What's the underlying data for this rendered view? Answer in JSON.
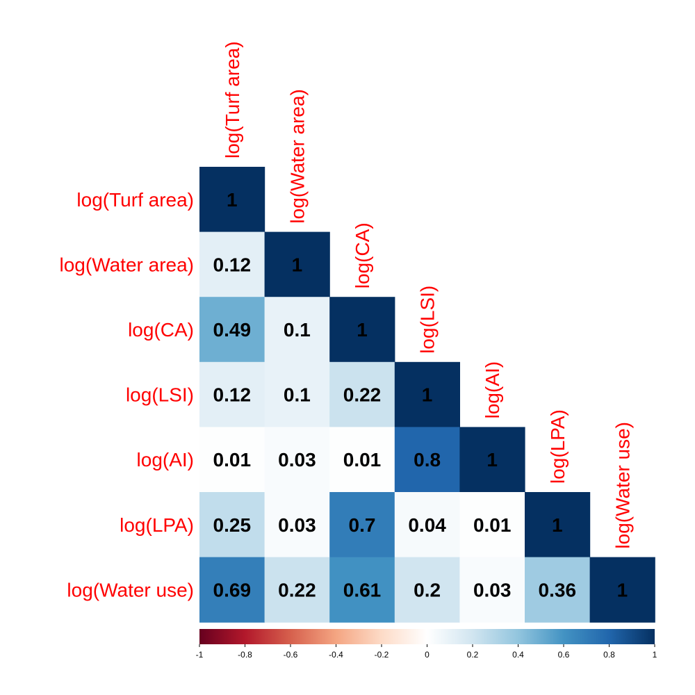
{
  "chart_data": {
    "type": "heatmap",
    "layout": "lower-triangle",
    "variables": [
      "log(Turf area)",
      "log(Water area)",
      "log(CA)",
      "log(LSI)",
      "log(AI)",
      "log(LPA)",
      "log(Water use)"
    ],
    "matrix": [
      [
        1
      ],
      [
        0.12,
        1
      ],
      [
        0.49,
        0.1,
        1
      ],
      [
        0.12,
        0.1,
        0.22,
        1
      ],
      [
        0.01,
        0.03,
        0.01,
        0.8,
        1
      ],
      [
        0.25,
        0.03,
        0.7,
        0.04,
        0.01,
        1
      ],
      [
        0.69,
        0.22,
        0.61,
        0.2,
        0.03,
        0.36,
        1
      ]
    ],
    "value_labels": [
      [
        "1"
      ],
      [
        "0.12",
        "1"
      ],
      [
        "0.49",
        "0.1",
        "1"
      ],
      [
        "0.12",
        "0.1",
        "0.22",
        "1"
      ],
      [
        "0.01",
        "0.03",
        "0.01",
        "0.8",
        "1"
      ],
      [
        "0.25",
        "0.03",
        "0.7",
        "0.04",
        "0.01",
        "1"
      ],
      [
        "0.69",
        "0.22",
        "0.61",
        "0.2",
        "0.03",
        "0.36",
        "1"
      ]
    ],
    "colorbar": {
      "range": [
        -1,
        1
      ],
      "ticks": [
        -1,
        -0.8,
        -0.6,
        -0.4,
        -0.2,
        0,
        0.2,
        0.4,
        0.6,
        0.8,
        1
      ],
      "tick_labels": [
        "-1",
        "-0.8",
        "-0.6",
        "-0.4",
        "-0.2",
        "0",
        "0.2",
        "0.4",
        "0.6",
        "0.8",
        "1"
      ],
      "placement": "bottom",
      "colors": [
        "#67001f",
        "#b2182b",
        "#d6604d",
        "#f4a582",
        "#fddbc7",
        "#ffffff",
        "#d1e5f0",
        "#92c5de",
        "#4393c3",
        "#2166ac",
        "#053061"
      ]
    },
    "label_color": "#ff0000",
    "value_color": "#000000"
  }
}
